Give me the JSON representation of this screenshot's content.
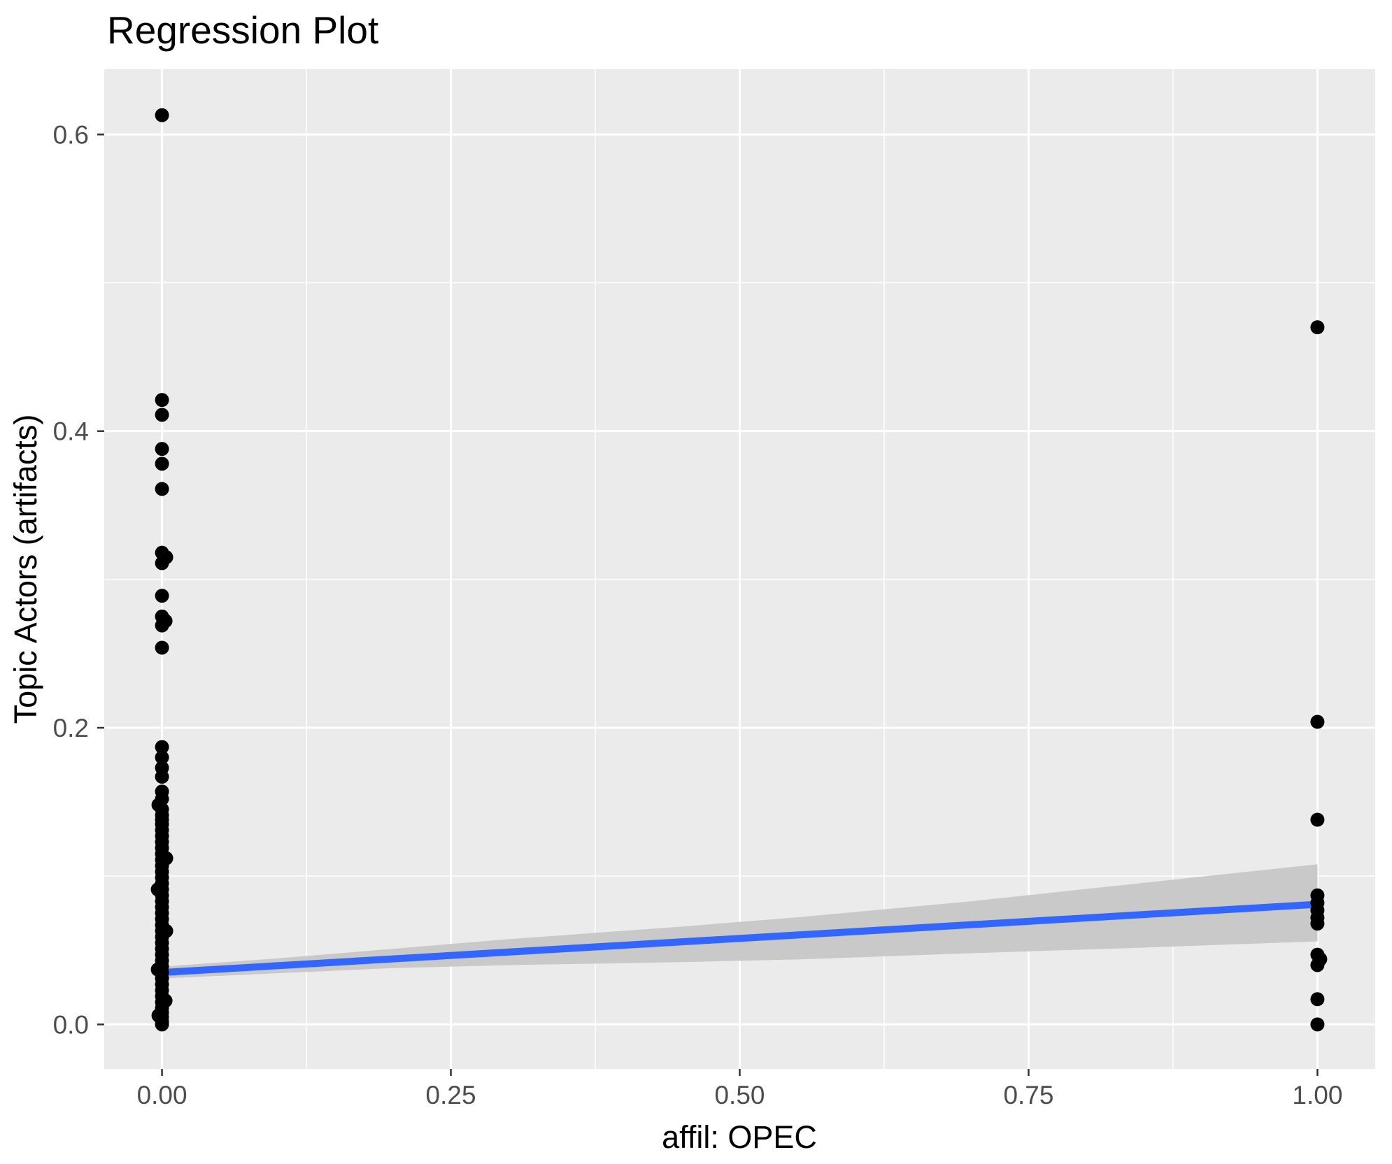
{
  "page": {
    "background": "#FFFFFF"
  },
  "colors": {
    "panel_background": "#EBEBEB",
    "grid": "#FFFFFF",
    "point": "#000000",
    "regression_line": "#3366FF",
    "ci_ribbon": "#C9C9C9",
    "axis_text": "#4D4D4D",
    "tick_mark": "#333333",
    "title_text": "#000000"
  },
  "chart_data": {
    "type": "scatter",
    "title": "Regression Plot",
    "xlabel": "affil: OPEC",
    "ylabel": "Topic Actors (artifacts)",
    "xlim": [
      -0.05,
      1.05
    ],
    "ylim": [
      -0.03,
      0.644
    ],
    "grid": "on",
    "legend_position": "none",
    "x_ticks": {
      "values": [
        0,
        0.25,
        0.5,
        0.75,
        1.0
      ],
      "labels": [
        "0.00",
        "0.25",
        "0.50",
        "0.75",
        "1.00"
      ]
    },
    "y_ticks": {
      "values": [
        0,
        0.2,
        0.4,
        0.6
      ],
      "labels": [
        "0.0",
        "0.2",
        "0.4",
        "0.6"
      ]
    },
    "x_minor_ticks": [
      0.125,
      0.375,
      0.625,
      0.875
    ],
    "y_minor_ticks": [
      0.1,
      0.3,
      0.5
    ],
    "series": [
      {
        "name": "observations",
        "type": "scatter",
        "color": "#000000",
        "points": [
          [
            0,
            0.613
          ],
          [
            0,
            0.421
          ],
          [
            0,
            0.411
          ],
          [
            0,
            0.388
          ],
          [
            0,
            0.378
          ],
          [
            0,
            0.361
          ],
          [
            0,
            0.318
          ],
          [
            0,
            0.311
          ],
          [
            0,
            0.289
          ],
          [
            0,
            0.275
          ],
          [
            0,
            0.269
          ],
          [
            0,
            0.254
          ],
          [
            0,
            0.187
          ],
          [
            0,
            0.18
          ],
          [
            0,
            0.173
          ],
          [
            0,
            0.167
          ],
          [
            0,
            0.157
          ],
          [
            0,
            0.152
          ],
          [
            0,
            0.145
          ],
          [
            0,
            0.141
          ],
          [
            0,
            0.138
          ],
          [
            0,
            0.135
          ],
          [
            0,
            0.131
          ],
          [
            0,
            0.127
          ],
          [
            0,
            0.123
          ],
          [
            0,
            0.119
          ],
          [
            0,
            0.115
          ],
          [
            0,
            0.111
          ],
          [
            0,
            0.107
          ],
          [
            0,
            0.103
          ],
          [
            0,
            0.099
          ],
          [
            0,
            0.095
          ],
          [
            0,
            0.091
          ],
          [
            0,
            0.087
          ],
          [
            0,
            0.083
          ],
          [
            0,
            0.079
          ],
          [
            0,
            0.075
          ],
          [
            0,
            0.071
          ],
          [
            0,
            0.067
          ],
          [
            0,
            0.063
          ],
          [
            0,
            0.059
          ],
          [
            0,
            0.055
          ],
          [
            0,
            0.051
          ],
          [
            0,
            0.047
          ],
          [
            0,
            0.043
          ],
          [
            0,
            0.039
          ],
          [
            0,
            0.035
          ],
          [
            0,
            0.031
          ],
          [
            0,
            0.027
          ],
          [
            0,
            0.023
          ],
          [
            0,
            0.019
          ],
          [
            0,
            0.015
          ],
          [
            0,
            0.011
          ],
          [
            0,
            0.008
          ],
          [
            0,
            0.005
          ],
          [
            0,
            0.002
          ],
          [
            0,
            0.0
          ],
          [
            0,
            0.315,
            6
          ],
          [
            0,
            0.272,
            5
          ],
          [
            0,
            0.148,
            -5
          ],
          [
            0,
            0.112,
            6
          ],
          [
            0,
            0.091,
            -6
          ],
          [
            0,
            0.063,
            6
          ],
          [
            0,
            0.037,
            -6
          ],
          [
            0,
            0.016,
            5
          ],
          [
            0,
            0.006,
            -5
          ],
          [
            1,
            0.47
          ],
          [
            1,
            0.204
          ],
          [
            1,
            0.138
          ],
          [
            1,
            0.087
          ],
          [
            1,
            0.082
          ],
          [
            1,
            0.077
          ],
          [
            1,
            0.072
          ],
          [
            1,
            0.068
          ],
          [
            1,
            0.047
          ],
          [
            1,
            0.044,
            4
          ],
          [
            1,
            0.04
          ],
          [
            1,
            0.017
          ],
          [
            1,
            0.0
          ]
        ]
      },
      {
        "name": "regression_fit",
        "type": "line",
        "color": "#3366FF",
        "x": [
          0,
          1
        ],
        "y": [
          0.035,
          0.081
        ]
      },
      {
        "name": "confidence_ribbon",
        "type": "area",
        "color": "#C9C9C9",
        "upper": [
          [
            0,
            0.039
          ],
          [
            0.1,
            0.0445
          ],
          [
            0.2,
            0.051
          ],
          [
            0.3,
            0.0575
          ],
          [
            0.45,
            0.066
          ],
          [
            0.55,
            0.0722
          ],
          [
            0.7,
            0.083
          ],
          [
            0.85,
            0.0955
          ],
          [
            1,
            0.108
          ]
        ],
        "lower": [
          [
            0,
            0.031
          ],
          [
            0.1,
            0.0345
          ],
          [
            0.2,
            0.038
          ],
          [
            0.3,
            0.04
          ],
          [
            0.45,
            0.042
          ],
          [
            0.55,
            0.0438
          ],
          [
            0.7,
            0.048
          ],
          [
            0.85,
            0.0518
          ],
          [
            1,
            0.056
          ]
        ]
      }
    ]
  }
}
